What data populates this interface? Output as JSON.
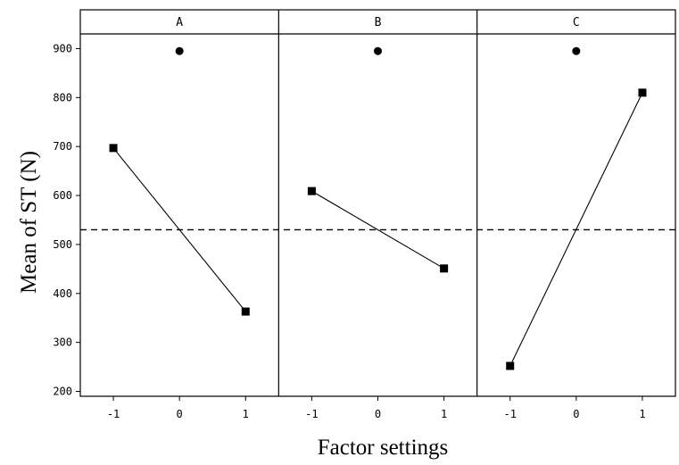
{
  "chart_data": {
    "type": "line",
    "xlabel": "Factor settings",
    "ylabel": "Mean of ST (N)",
    "ylim": [
      190,
      930
    ],
    "yticks": [
      200,
      300,
      400,
      500,
      600,
      700,
      800,
      900
    ],
    "xticks": [
      "-1",
      "0",
      "1"
    ],
    "reference_line": {
      "y": 530,
      "style": "dashed"
    },
    "center_point": {
      "x": 0,
      "y": 895
    },
    "grid": false,
    "panels": [
      {
        "title": "A",
        "x": [
          -1,
          1
        ],
        "y": [
          697,
          363
        ]
      },
      {
        "title": "B",
        "x": [
          -1,
          1
        ],
        "y": [
          609,
          451
        ]
      },
      {
        "title": "C",
        "x": [
          -1,
          1
        ],
        "y": [
          252,
          810
        ]
      }
    ]
  }
}
